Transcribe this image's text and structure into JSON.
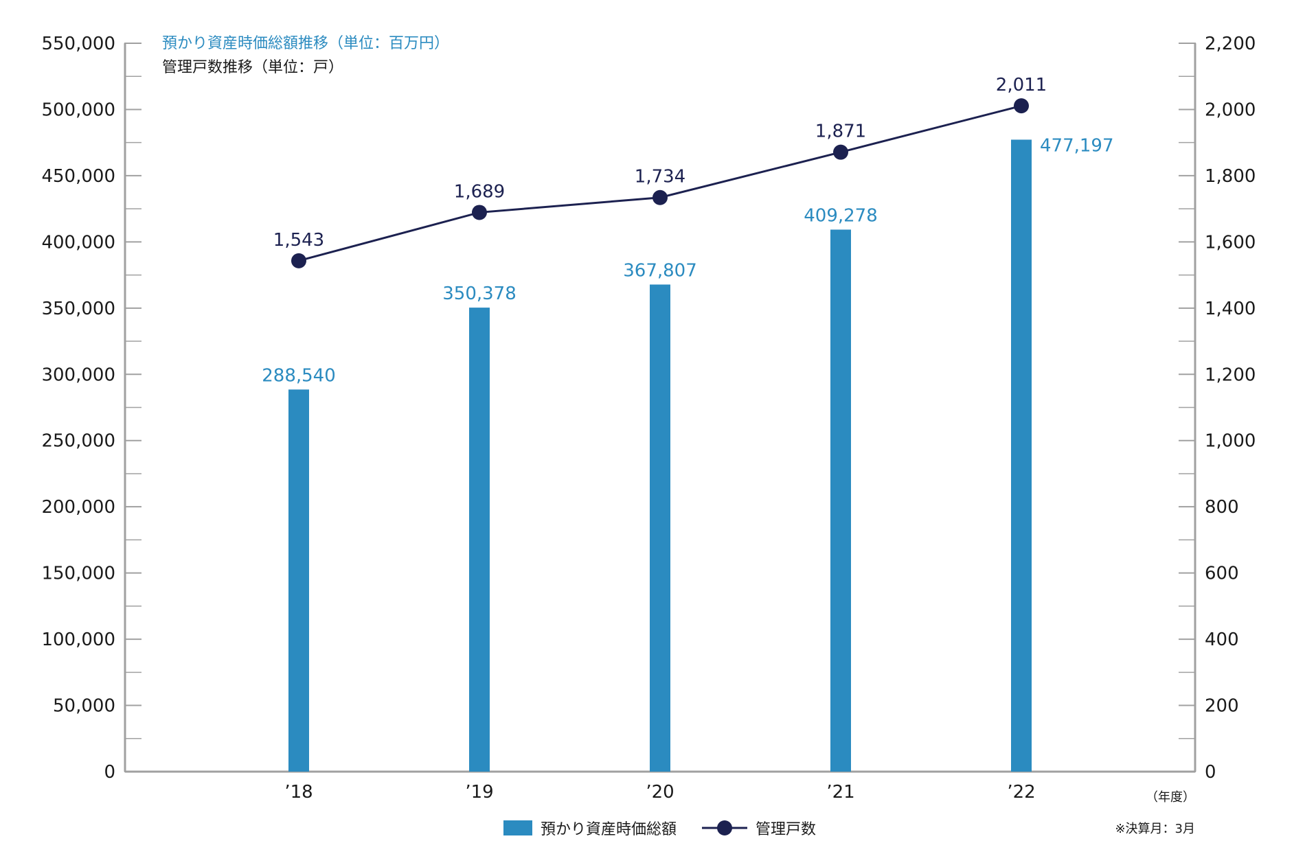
{
  "chart_data": {
    "type": "bar",
    "categories": [
      "’18",
      "’19",
      "’20",
      "’21",
      "’22"
    ],
    "series": [
      {
        "name": "預かり資産時価総額",
        "type": "bar",
        "axis": "left",
        "values": [
          288540,
          350378,
          367807,
          409278,
          477197
        ],
        "labels": [
          "288,540",
          "350,378",
          "367,807",
          "409,278",
          "477,197"
        ]
      },
      {
        "name": "管理戸数",
        "type": "line",
        "axis": "right",
        "values": [
          1543,
          1689,
          1734,
          1871,
          2011
        ],
        "labels": [
          "1,543",
          "1,689",
          "1,734",
          "1,871",
          "2,011"
        ]
      }
    ],
    "title_bar_series": "預かり資産時価総額推移（単位：百万円）",
    "title_line_series": "管理戸数推移（単位：戸）",
    "xlabel": "（年度）",
    "note": "※決算月：3月",
    "left_axis": {
      "ylim": [
        0,
        550000
      ],
      "ticks": [
        0,
        50000,
        100000,
        150000,
        200000,
        250000,
        300000,
        350000,
        400000,
        450000,
        500000,
        550000
      ],
      "tick_labels": [
        "0",
        "50,000",
        "100,000",
        "150,000",
        "200,000",
        "250,000",
        "300,000",
        "350,000",
        "400,000",
        "450,000",
        "500,000",
        "550,000"
      ]
    },
    "right_axis": {
      "ylim": [
        0,
        2200
      ],
      "ticks": [
        0,
        200,
        400,
        600,
        800,
        1000,
        1200,
        1400,
        1600,
        1800,
        2000,
        2200
      ],
      "tick_labels": [
        "0",
        "200",
        "400",
        "600",
        "800",
        "1,000",
        "1,200",
        "1,400",
        "1,600",
        "1,800",
        "2,000",
        "2,200"
      ]
    },
    "grid": false,
    "legend_placement": "bottom-center",
    "colors": {
      "bar": "#2b8bc0",
      "line": "#1c2150",
      "axis": "#a0a0a0"
    }
  }
}
